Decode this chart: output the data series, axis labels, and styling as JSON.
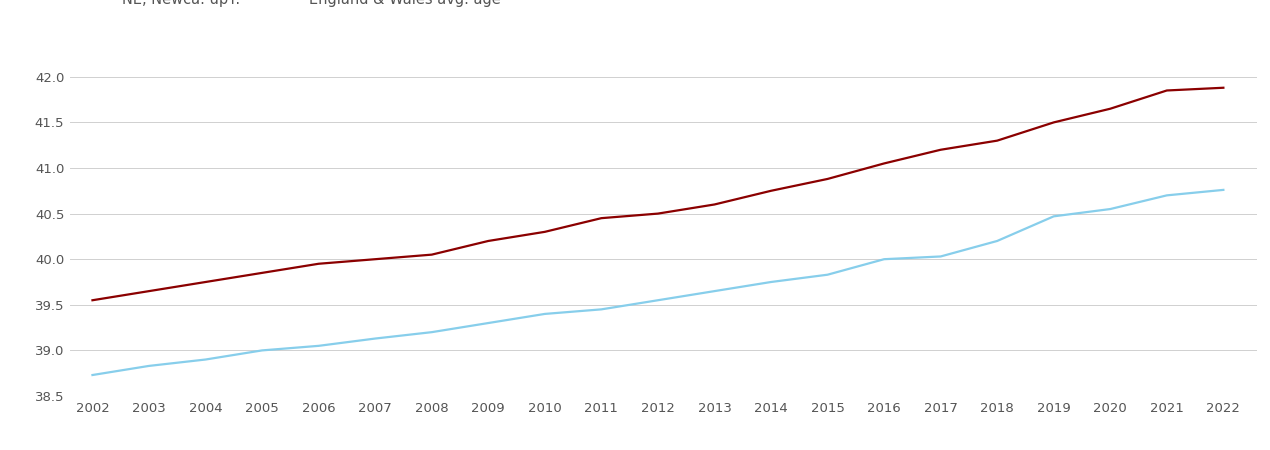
{
  "years": [
    2002,
    2003,
    2004,
    2005,
    2006,
    2007,
    2008,
    2009,
    2010,
    2011,
    2012,
    2013,
    2014,
    2015,
    2016,
    2017,
    2018,
    2019,
    2020,
    2021,
    2022
  ],
  "newcastle": [
    39.55,
    39.65,
    39.75,
    39.85,
    39.95,
    40.0,
    40.05,
    40.2,
    40.3,
    40.45,
    40.5,
    40.6,
    40.75,
    40.88,
    41.05,
    41.2,
    41.3,
    41.5,
    41.65,
    41.85,
    41.88
  ],
  "england_wales": [
    38.73,
    38.83,
    38.9,
    39.0,
    39.05,
    39.13,
    39.2,
    39.3,
    39.4,
    39.45,
    39.55,
    39.65,
    39.75,
    39.83,
    40.0,
    40.03,
    40.2,
    40.47,
    40.55,
    40.7,
    40.76
  ],
  "newcastle_color": "#8B0000",
  "england_wales_color": "#87CEEB",
  "ylim": [
    38.5,
    42.25
  ],
  "yticks": [
    38.5,
    39.0,
    39.5,
    40.0,
    40.5,
    41.0,
    41.5,
    42.0
  ],
  "background_color": "#ffffff",
  "grid_color": "#d0d0d0",
  "line_width": 1.6,
  "tick_label_color": "#555555",
  "tick_label_fontsize": 9.5,
  "legend_fontsize": 10.5
}
